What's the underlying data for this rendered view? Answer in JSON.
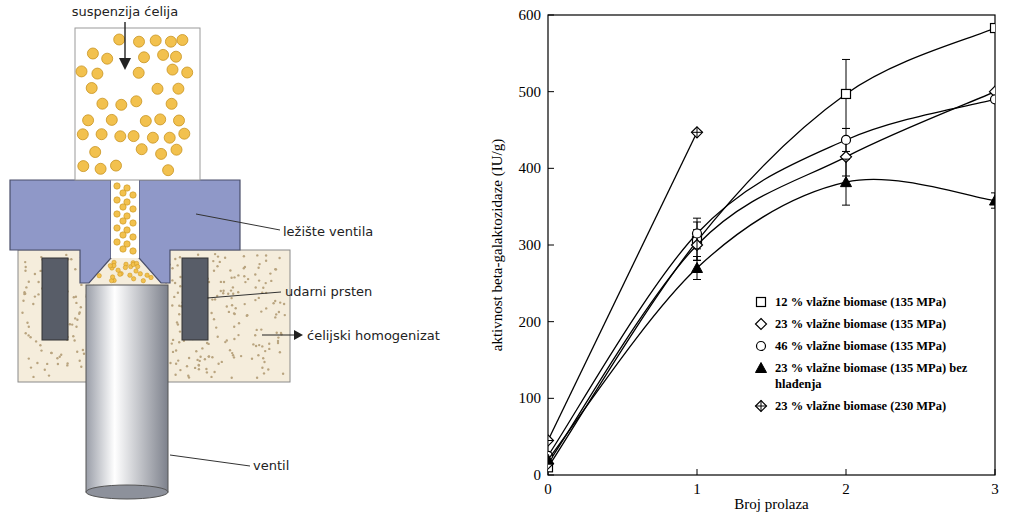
{
  "diagram": {
    "labels": [
      "suspenzija ćelija",
      "ležište ventila",
      "udarni prsten",
      "ćelijski homogenizat",
      "ventil"
    ]
  },
  "chart_data": {
    "type": "line",
    "x_label": "Broj prolaza",
    "y_label": "aktivnost beta-galaktozidaze (IU/g)",
    "x": [
      0,
      1,
      2,
      3
    ],
    "xlim": [
      0,
      3
    ],
    "xticks": [
      0,
      1,
      2,
      3
    ],
    "ylim": [
      0,
      600
    ],
    "yticks": [
      0,
      100,
      200,
      300,
      400,
      500,
      600
    ],
    "grid": false,
    "legend": "lower right",
    "series": [
      {
        "name": "12 % vlažne biomase (135 MPa)",
        "color": "#000000",
        "marker": "square",
        "line_style": "smooth",
        "values": [
          10,
          305,
          497,
          583
        ],
        "errors": [
          null,
          25,
          45,
          null
        ]
      },
      {
        "name": "23 % vlažne biomase (135 MPa)",
        "color": "#000000",
        "marker": "diamond",
        "line_style": "smooth",
        "values": [
          15,
          300,
          415,
          500
        ],
        "errors": [
          null,
          20,
          25,
          null
        ]
      },
      {
        "name": "46 % vlažne biomase (135 MPa)",
        "color": "#000000",
        "marker": "circle",
        "line_style": "smooth",
        "values": [
          25,
          315,
          437,
          490
        ],
        "errors": [
          null,
          20,
          15,
          null
        ]
      },
      {
        "name": "23 % vlažne biomase (135 MPa) bez hlađenja",
        "color": "#000000",
        "marker": "triangle",
        "line_style": "smooth",
        "values": [
          20,
          270,
          382,
          358
        ],
        "errors": [
          null,
          15,
          30,
          10
        ]
      },
      {
        "name": "23 % vlažne biomase (230 MPa)",
        "color": "#000000",
        "marker": "crossed-diamond",
        "line_style": "solid",
        "values": [
          45,
          447,
          null,
          null
        ],
        "errors": [
          null,
          null,
          null,
          null
        ]
      }
    ]
  }
}
